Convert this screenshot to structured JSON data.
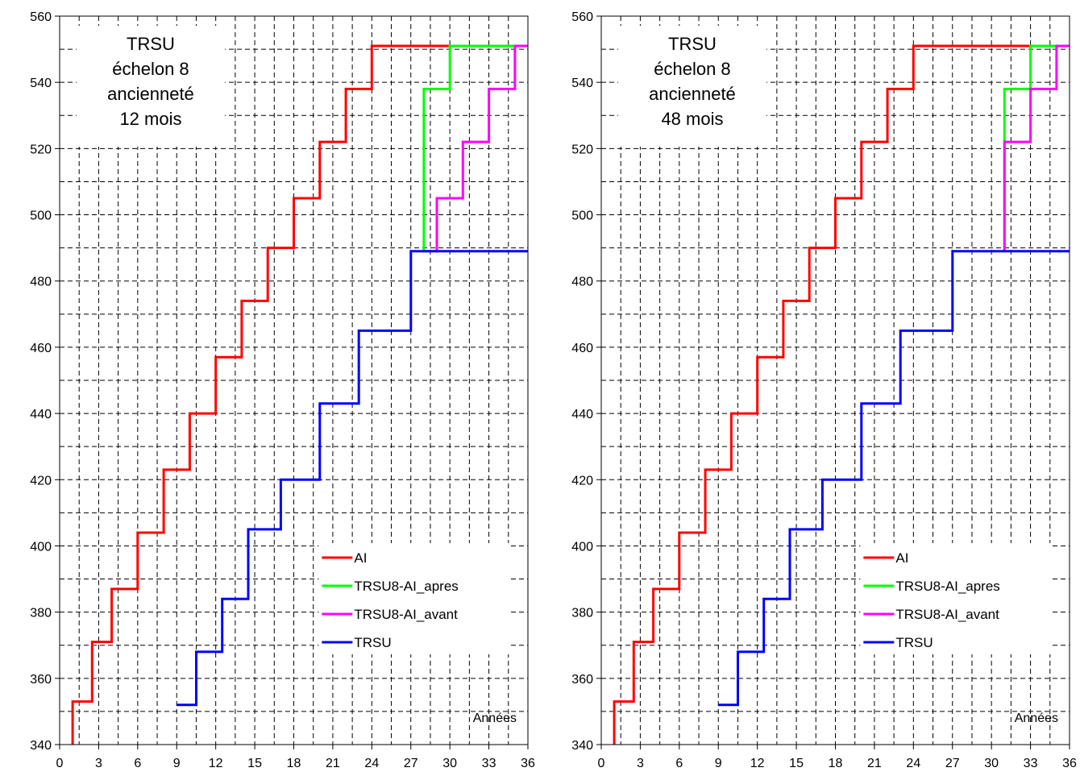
{
  "chart_data": [
    {
      "type": "line",
      "step": true,
      "annotation": [
        "TRSU",
        "échelon 8",
        "ancienneté",
        "12 mois"
      ],
      "xlabel": "Années",
      "ylabel": "",
      "xlim": [
        0,
        36
      ],
      "ylim": [
        340,
        560
      ],
      "xticks": [
        0,
        3,
        6,
        9,
        12,
        15,
        18,
        21,
        24,
        27,
        30,
        33,
        36
      ],
      "yticks": [
        340,
        360,
        380,
        400,
        420,
        440,
        460,
        480,
        500,
        520,
        540,
        560
      ],
      "grid": "dashed, 1.5-year by 10-point",
      "legend_position": "lower-right",
      "series": [
        {
          "name": "AI",
          "color": "#ff0000",
          "points": [
            [
              1,
              340
            ],
            [
              1,
              353
            ],
            [
              2.5,
              353
            ],
            [
              2.5,
              371
            ],
            [
              4,
              371
            ],
            [
              4,
              387
            ],
            [
              6,
              387
            ],
            [
              6,
              404
            ],
            [
              8,
              404
            ],
            [
              8,
              423
            ],
            [
              10,
              423
            ],
            [
              10,
              440
            ],
            [
              12,
              440
            ],
            [
              12,
              457
            ],
            [
              14,
              457
            ],
            [
              14,
              474
            ],
            [
              16,
              474
            ],
            [
              16,
              490
            ],
            [
              18,
              490
            ],
            [
              18,
              505
            ],
            [
              20,
              505
            ],
            [
              20,
              522
            ],
            [
              22,
              522
            ],
            [
              22,
              538
            ],
            [
              24,
              538
            ],
            [
              24,
              551
            ],
            [
              36,
              551
            ]
          ]
        },
        {
          "name": "TRSU8-AI_apres",
          "color": "#00ff00",
          "points": [
            [
              28,
              489
            ],
            [
              28,
              538
            ],
            [
              30,
              538
            ],
            [
              30,
              551
            ],
            [
              36,
              551
            ]
          ]
        },
        {
          "name": "TRSU8-AI_avant",
          "color": "#ff00ff",
          "points": [
            [
              28,
              489
            ],
            [
              29,
              489
            ],
            [
              29,
              505
            ],
            [
              31,
              505
            ],
            [
              31,
              522
            ],
            [
              33,
              522
            ],
            [
              33,
              538
            ],
            [
              35,
              538
            ],
            [
              35,
              551
            ],
            [
              36,
              551
            ]
          ]
        },
        {
          "name": "TRSU",
          "color": "#0000ff",
          "points": [
            [
              9,
              352
            ],
            [
              10.5,
              352
            ],
            [
              10.5,
              368
            ],
            [
              12.5,
              368
            ],
            [
              12.5,
              384
            ],
            [
              14.5,
              384
            ],
            [
              14.5,
              405
            ],
            [
              17,
              405
            ],
            [
              17,
              420
            ],
            [
              20,
              420
            ],
            [
              20,
              443
            ],
            [
              23,
              443
            ],
            [
              23,
              465
            ],
            [
              27,
              465
            ],
            [
              27,
              489
            ],
            [
              36,
              489
            ]
          ]
        }
      ]
    },
    {
      "type": "line",
      "step": true,
      "annotation": [
        "TRSU",
        "échelon 8",
        "ancienneté",
        "48 mois"
      ],
      "xlabel": "Années",
      "ylabel": "",
      "xlim": [
        0,
        36
      ],
      "ylim": [
        340,
        560
      ],
      "xticks": [
        0,
        3,
        6,
        9,
        12,
        15,
        18,
        21,
        24,
        27,
        30,
        33,
        36
      ],
      "yticks": [
        340,
        360,
        380,
        400,
        420,
        440,
        460,
        480,
        500,
        520,
        540,
        560
      ],
      "grid": "dashed, 1.5-year by 10-point",
      "legend_position": "lower-right",
      "series": [
        {
          "name": "AI",
          "color": "#ff0000",
          "points": [
            [
              1,
              340
            ],
            [
              1,
              353
            ],
            [
              2.5,
              353
            ],
            [
              2.5,
              371
            ],
            [
              4,
              371
            ],
            [
              4,
              387
            ],
            [
              6,
              387
            ],
            [
              6,
              404
            ],
            [
              8,
              404
            ],
            [
              8,
              423
            ],
            [
              10,
              423
            ],
            [
              10,
              440
            ],
            [
              12,
              440
            ],
            [
              12,
              457
            ],
            [
              14,
              457
            ],
            [
              14,
              474
            ],
            [
              16,
              474
            ],
            [
              16,
              490
            ],
            [
              18,
              490
            ],
            [
              18,
              505
            ],
            [
              20,
              505
            ],
            [
              20,
              522
            ],
            [
              22,
              522
            ],
            [
              22,
              538
            ],
            [
              24,
              538
            ],
            [
              24,
              551
            ],
            [
              36,
              551
            ]
          ]
        },
        {
          "name": "TRSU8-AI_apres",
          "color": "#00ff00",
          "points": [
            [
              31,
              489
            ],
            [
              31,
              538
            ],
            [
              33,
              538
            ],
            [
              33,
              551
            ],
            [
              36,
              551
            ]
          ]
        },
        {
          "name": "TRSU8-AI_avant",
          "color": "#ff00ff",
          "points": [
            [
              31,
              489
            ],
            [
              31,
              505
            ],
            [
              31,
              522
            ],
            [
              33,
              522
            ],
            [
              33,
              538
            ],
            [
              35,
              538
            ],
            [
              35,
              551
            ],
            [
              36,
              551
            ]
          ]
        },
        {
          "name": "TRSU",
          "color": "#0000ff",
          "points": [
            [
              9,
              352
            ],
            [
              10.5,
              352
            ],
            [
              10.5,
              368
            ],
            [
              12.5,
              368
            ],
            [
              12.5,
              384
            ],
            [
              14.5,
              384
            ],
            [
              14.5,
              405
            ],
            [
              17,
              405
            ],
            [
              17,
              420
            ],
            [
              20,
              420
            ],
            [
              20,
              443
            ],
            [
              23,
              443
            ],
            [
              23,
              465
            ],
            [
              27,
              465
            ],
            [
              27,
              489
            ],
            [
              36,
              489
            ]
          ]
        }
      ]
    }
  ]
}
